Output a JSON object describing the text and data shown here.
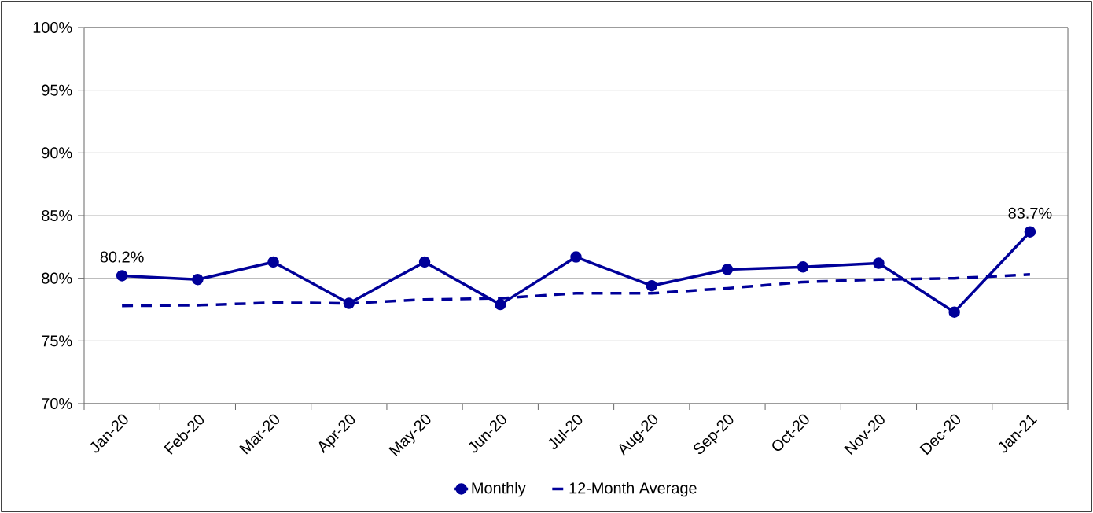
{
  "chart_data": {
    "type": "line",
    "categories": [
      "Jan-20",
      "Feb-20",
      "Mar-20",
      "Apr-20",
      "May-20",
      "Jun-20",
      "Jul-20",
      "Aug-20",
      "Sep-20",
      "Oct-20",
      "Nov-20",
      "Dec-20",
      "Jan-21"
    ],
    "series": [
      {
        "name": "Monthly",
        "color": "#000099",
        "marker": "circle",
        "line_style": "solid",
        "values": [
          80.2,
          79.9,
          81.3,
          78.0,
          81.3,
          77.9,
          81.7,
          79.4,
          80.7,
          80.9,
          81.2,
          77.3,
          83.7
        ],
        "value_labels": [
          "80.2%",
          null,
          null,
          null,
          null,
          null,
          null,
          null,
          null,
          null,
          null,
          null,
          "83.7%"
        ]
      },
      {
        "name": "12-Month Average",
        "color": "#000099",
        "marker": "none",
        "line_style": "dashed",
        "values": [
          77.8,
          77.85,
          78.05,
          78.0,
          78.3,
          78.4,
          78.8,
          78.8,
          79.2,
          79.7,
          79.9,
          80.0,
          80.3
        ]
      }
    ],
    "ylim": [
      70,
      100
    ],
    "yticks": [
      {
        "value": 70,
        "label": "70%"
      },
      {
        "value": 75,
        "label": "75%"
      },
      {
        "value": 80,
        "label": "80%"
      },
      {
        "value": 85,
        "label": "85%"
      },
      {
        "value": 90,
        "label": "90%"
      },
      {
        "value": 95,
        "label": "95%"
      },
      {
        "value": 100,
        "label": "100%"
      }
    ],
    "grid": "y",
    "legend": "bottom"
  }
}
